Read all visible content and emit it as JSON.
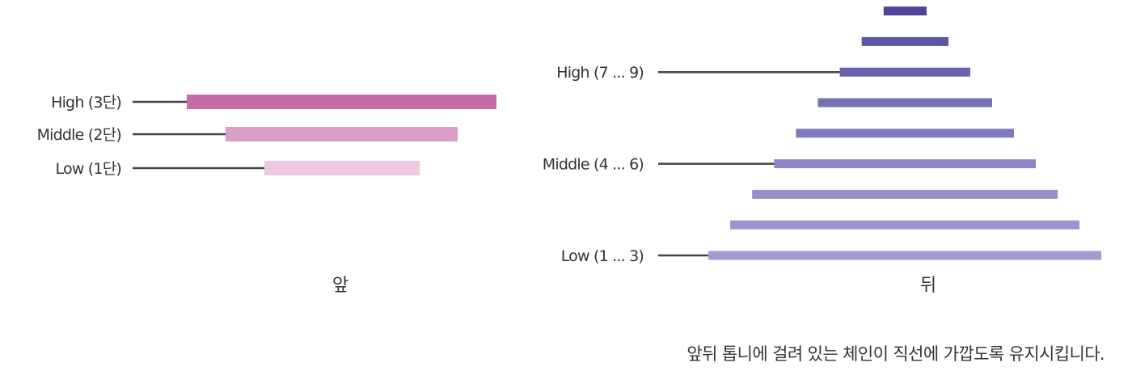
{
  "front": {
    "caption": "앞",
    "levels": [
      {
        "label": "High (3단)",
        "color": "#c56ca8"
      },
      {
        "label": "Middle (2단)",
        "color": "#dc9ec6"
      },
      {
        "label": "Low (1단)",
        "color": "#efc8de"
      }
    ]
  },
  "rear": {
    "caption": "뒤",
    "labels": [
      {
        "label": "High (7 ... 9)",
        "gear": 7
      },
      {
        "label": "Middle (4 ... 6)",
        "gear": 4
      },
      {
        "label": "Low (1 ... 3)",
        "gear": 1
      }
    ],
    "sprocket_colors": [
      "#a09bd0",
      "#9b96cd",
      "#9590c9",
      "#8b85c3",
      "#7f79bb",
      "#756fb5",
      "#6a62ac",
      "#5e55a5",
      "#4f4498"
    ]
  },
  "note": "앞뒤 톱니에 걸려 있는 체인이 직선에 가깝도록 유지시킵니다."
}
